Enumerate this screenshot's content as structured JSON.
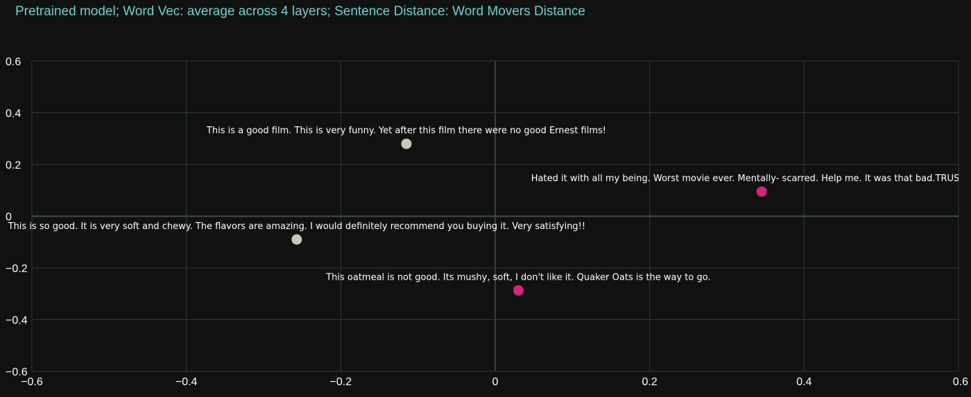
{
  "chart_data": {
    "type": "scatter",
    "title": "Pretrained model; Word Vec: average across 4 layers; Sentence Distance: Word Movers Distance",
    "xlim": [
      -0.6,
      0.6
    ],
    "ylim": [
      -0.6,
      0.6
    ],
    "xticks": [
      -0.6,
      -0.4,
      -0.2,
      0,
      0.2,
      0.4,
      0.6
    ],
    "yticks": [
      -0.6,
      -0.4,
      -0.2,
      0,
      0.2,
      0.4,
      0.6
    ],
    "xtick_labels": [
      "−0.6",
      "−0.4",
      "−0.2",
      "0",
      "0.2",
      "0.4",
      "0.6"
    ],
    "ytick_labels": [
      "−0.6",
      "−0.4",
      "−0.2",
      "0",
      "0.2",
      "0.4",
      "0.6"
    ],
    "grid": true,
    "points": [
      {
        "x": -0.115,
        "y": 0.28,
        "label": "This is a good film. This is very funny. Yet after this film there were no good Ernest films!",
        "color": "#c8c8b4"
      },
      {
        "x": 0.345,
        "y": 0.095,
        "label": "Hated it with all my being. Worst movie ever. Mentally- scarred. Help me. It was that bad.TRUST ME!!!",
        "color": "#d1267f"
      },
      {
        "x": -0.257,
        "y": -0.09,
        "label": "This is so good.  It is very soft and chewy.  The flavors are amazing.  I would definitely recommend you buying it.  Very satisfying!!",
        "color": "#c8c8b4"
      },
      {
        "x": 0.03,
        "y": -0.287,
        "label": "This oatmeal is not good. Its mushy, soft, I don't like it. Quaker Oats is the way to go.",
        "color": "#d1267f"
      }
    ]
  },
  "colors": {
    "background": "#111111",
    "grid": "#2b3a40",
    "zeroline": "#3e4f55",
    "title": "#6fcfd2",
    "text": "#ffffff"
  }
}
